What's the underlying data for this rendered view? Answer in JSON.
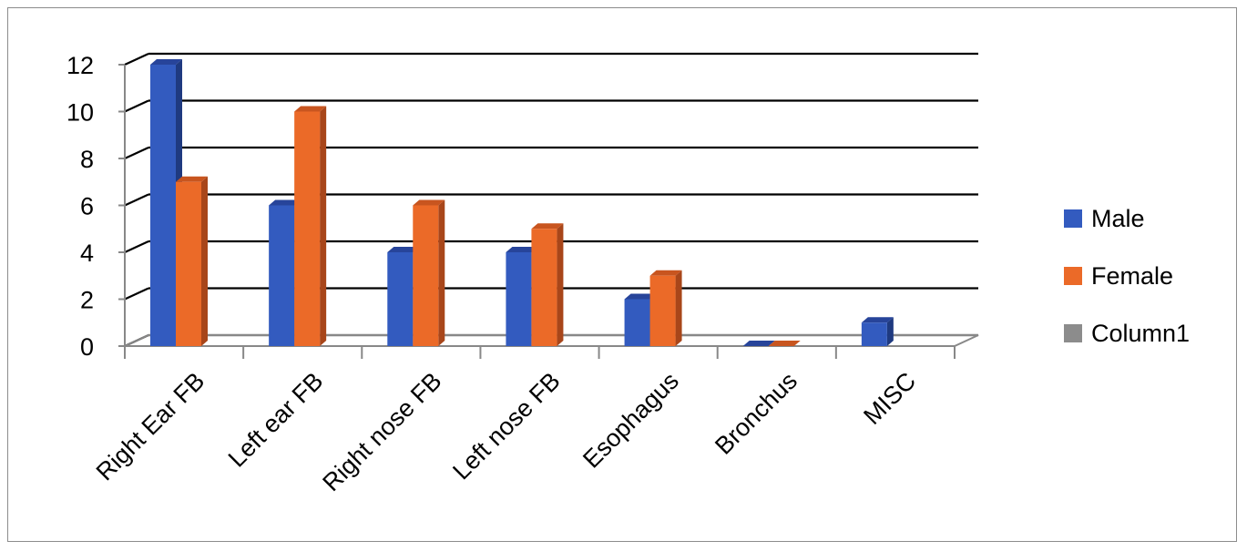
{
  "chart_data": {
    "type": "bar",
    "title": "",
    "xlabel": "",
    "ylabel": "",
    "categories": [
      "Right Ear FB",
      "Left ear FB",
      "Right nose FB",
      "Left nose FB",
      "Esophagus",
      "Bronchus",
      "MISC"
    ],
    "series": [
      {
        "name": "Male",
        "values": [
          12,
          6,
          4,
          4,
          2,
          0,
          1
        ],
        "color": "#335BBF",
        "side_color": "#1F3A80",
        "top_color": "#27449A"
      },
      {
        "name": "Female",
        "values": [
          7,
          10,
          6,
          5,
          3,
          0,
          null
        ],
        "color": "#EB6A28",
        "side_color": "#A8461A",
        "top_color": "#C8551F"
      },
      {
        "name": "Column1",
        "values": [
          null,
          null,
          null,
          null,
          null,
          null,
          null
        ],
        "color": "#8C8C8C"
      }
    ],
    "ylim": [
      0,
      12
    ],
    "yticks": [
      0,
      2,
      4,
      6,
      8,
      10,
      12
    ],
    "grid": true,
    "style": "3d-clustered-column",
    "legend_position": "right"
  }
}
